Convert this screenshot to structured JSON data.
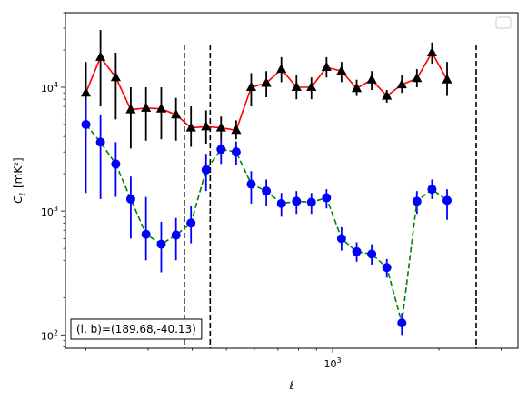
{
  "chart_data": {
    "type": "scatter",
    "x_scale": "log",
    "y_scale": "log",
    "xlim": [
      175,
      3350
    ],
    "ylim": [
      78,
      40000
    ],
    "xlabel": "ℓ",
    "ylabel_main": "C",
    "ylabel_sub": "ℓ",
    "ylabel_unit": "[mK²]",
    "x_major_ticks": [
      {
        "value": 1000,
        "base": "10",
        "exp": "3"
      }
    ],
    "y_major_ticks": [
      {
        "value": 100,
        "base": "10",
        "exp": "2"
      },
      {
        "value": 1000,
        "base": "10",
        "exp": "3"
      },
      {
        "value": 10000,
        "base": "10",
        "exp": "4"
      }
    ],
    "annotation": "(l, b)=(189.68,-40.13)",
    "legend": {
      "placement": "top-right",
      "entries": []
    },
    "vlines": [
      {
        "x": 380,
        "color": "#000000",
        "style": "dashed"
      },
      {
        "x": 450,
        "color": "#000000",
        "style": "dashed"
      },
      {
        "x": 2550,
        "color": "#000000",
        "style": "dashed"
      }
    ],
    "series": [
      {
        "marker": "triangle",
        "marker_color": "#000000",
        "errorbar_color": "#000000",
        "line_color": "#ff0000",
        "line_style": "solid",
        "points": [
          {
            "x": 200,
            "y": 9000,
            "lo": 5500,
            "hi": 16000
          },
          {
            "x": 220,
            "y": 17500,
            "lo": 7000,
            "hi": 29000
          },
          {
            "x": 243,
            "y": 12000,
            "lo": 5500,
            "hi": 19000
          },
          {
            "x": 268,
            "y": 6600,
            "lo": 3200,
            "hi": 10000
          },
          {
            "x": 296,
            "y": 6800,
            "lo": 3700,
            "hi": 10000
          },
          {
            "x": 327,
            "y": 6700,
            "lo": 3800,
            "hi": 10000
          },
          {
            "x": 360,
            "y": 6000,
            "lo": 3700,
            "hi": 8200
          },
          {
            "x": 397,
            "y": 4700,
            "lo": 3300,
            "hi": 7000
          },
          {
            "x": 438,
            "y": 4800,
            "lo": 3500,
            "hi": 6500
          },
          {
            "x": 483,
            "y": 4700,
            "lo": 3800,
            "hi": 5800
          },
          {
            "x": 533,
            "y": 4500,
            "lo": 3800,
            "hi": 5400
          },
          {
            "x": 588,
            "y": 10000,
            "lo": 7000,
            "hi": 13000
          },
          {
            "x": 649,
            "y": 10800,
            "lo": 8300,
            "hi": 13500
          },
          {
            "x": 716,
            "y": 14000,
            "lo": 11000,
            "hi": 17500
          },
          {
            "x": 790,
            "y": 10000,
            "lo": 8000,
            "hi": 12500
          },
          {
            "x": 871,
            "y": 10000,
            "lo": 8000,
            "hi": 12000
          },
          {
            "x": 961,
            "y": 14500,
            "lo": 12000,
            "hi": 17500
          },
          {
            "x": 1060,
            "y": 13500,
            "lo": 11000,
            "hi": 16000
          },
          {
            "x": 1170,
            "y": 9800,
            "lo": 8500,
            "hi": 11500
          },
          {
            "x": 1291,
            "y": 11500,
            "lo": 9500,
            "hi": 13500
          },
          {
            "x": 1424,
            "y": 8500,
            "lo": 7500,
            "hi": 9500
          },
          {
            "x": 1571,
            "y": 10500,
            "lo": 9000,
            "hi": 12500
          },
          {
            "x": 1733,
            "y": 11800,
            "lo": 10000,
            "hi": 14000
          },
          {
            "x": 1912,
            "y": 19000,
            "lo": 15500,
            "hi": 23000
          },
          {
            "x": 2110,
            "y": 11500,
            "lo": 8500,
            "hi": 16000
          }
        ]
      },
      {
        "marker": "circle",
        "marker_color": "#0000ff",
        "errorbar_color": "#0000ff",
        "line_color": "#008000",
        "line_style": "dashed",
        "points": [
          {
            "x": 200,
            "y": 5000,
            "lo": 1400,
            "hi": 8000
          },
          {
            "x": 220,
            "y": 3600,
            "lo": 1250,
            "hi": 6000
          },
          {
            "x": 243,
            "y": 2400,
            "lo": 1300,
            "hi": 3600
          },
          {
            "x": 268,
            "y": 1250,
            "lo": 600,
            "hi": 1900
          },
          {
            "x": 296,
            "y": 650,
            "lo": 400,
            "hi": 1300
          },
          {
            "x": 327,
            "y": 540,
            "lo": 320,
            "hi": 820
          },
          {
            "x": 360,
            "y": 640,
            "lo": 400,
            "hi": 880
          },
          {
            "x": 397,
            "y": 800,
            "lo": 550,
            "hi": 1100
          },
          {
            "x": 438,
            "y": 2150,
            "lo": 1450,
            "hi": 2900
          },
          {
            "x": 483,
            "y": 3150,
            "lo": 2400,
            "hi": 3900
          },
          {
            "x": 533,
            "y": 3000,
            "lo": 2350,
            "hi": 3650
          },
          {
            "x": 588,
            "y": 1650,
            "lo": 1150,
            "hi": 2100
          },
          {
            "x": 649,
            "y": 1450,
            "lo": 1100,
            "hi": 1800
          },
          {
            "x": 716,
            "y": 1150,
            "lo": 900,
            "hi": 1400
          },
          {
            "x": 790,
            "y": 1200,
            "lo": 950,
            "hi": 1450
          },
          {
            "x": 871,
            "y": 1180,
            "lo": 950,
            "hi": 1400
          },
          {
            "x": 961,
            "y": 1280,
            "lo": 1050,
            "hi": 1500
          },
          {
            "x": 1060,
            "y": 600,
            "lo": 480,
            "hi": 740
          },
          {
            "x": 1170,
            "y": 470,
            "lo": 390,
            "hi": 560
          },
          {
            "x": 1291,
            "y": 450,
            "lo": 370,
            "hi": 540
          },
          {
            "x": 1424,
            "y": 350,
            "lo": 290,
            "hi": 410
          },
          {
            "x": 1571,
            "y": 125,
            "lo": 100,
            "hi": 150
          },
          {
            "x": 1733,
            "y": 1200,
            "lo": 950,
            "hi": 1450
          },
          {
            "x": 1912,
            "y": 1500,
            "lo": 1250,
            "hi": 1800
          },
          {
            "x": 2110,
            "y": 1220,
            "lo": 850,
            "hi": 1500
          }
        ]
      }
    ]
  }
}
